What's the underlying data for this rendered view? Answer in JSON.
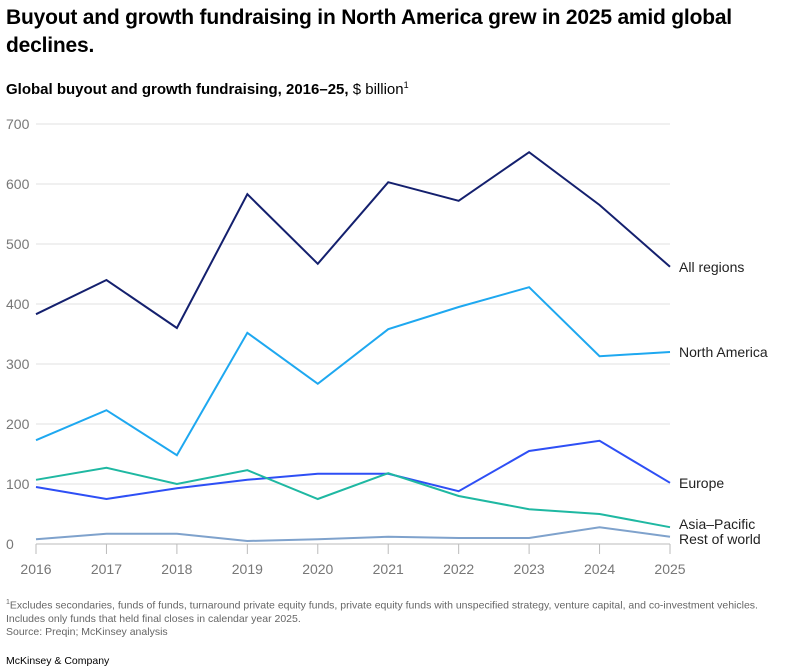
{
  "title": "Buyout and growth fundraising in North America grew in 2025 amid global declines.",
  "subtitle": {
    "bold": "Global buyout and growth fundraising, 2016–25,",
    "unit": " $ billion",
    "sup": "1"
  },
  "footnote": {
    "sup": "1",
    "text": "Excludes secondaries, funds of funds, turnaround private equity funds, private equity funds with unspecified strategy, venture capital, and co-investment vehicles. Includes only funds that held final closes in calendar year 2025."
  },
  "source": "Source: Preqin; McKinsey analysis",
  "brand": "McKinsey & Company",
  "chart_data": {
    "type": "line",
    "x": [
      2016,
      2017,
      2018,
      2019,
      2020,
      2021,
      2022,
      2023,
      2024,
      2025
    ],
    "xtick_labels": [
      "2016",
      "2017",
      "2018",
      "2019",
      "2020",
      "2021",
      "2022",
      "2023",
      "2024",
      "2025"
    ],
    "ylim": [
      0,
      700
    ],
    "yticks": [
      0,
      100,
      200,
      300,
      400,
      500,
      600,
      700
    ],
    "ytick_labels": [
      "0",
      "100",
      "200",
      "300",
      "400",
      "500",
      "600",
      "700"
    ],
    "grid": true,
    "legend": "direct labels at right end of lines",
    "series": [
      {
        "name": "All regions",
        "color": "#14206e",
        "values": [
          383,
          440,
          360,
          583,
          467,
          603,
          572,
          653,
          565,
          462
        ]
      },
      {
        "name": "North America",
        "color": "#1ea8f0",
        "values": [
          173,
          223,
          148,
          352,
          267,
          358,
          395,
          428,
          313,
          320
        ]
      },
      {
        "name": "Europe",
        "color": "#2e4ff5",
        "values": [
          95,
          75,
          93,
          107,
          117,
          117,
          88,
          155,
          172,
          102
        ]
      },
      {
        "name": "Asia–Pacific",
        "color": "#1fb8a2",
        "values": [
          107,
          127,
          100,
          123,
          75,
          118,
          80,
          58,
          50,
          28
        ]
      },
      {
        "name": "Rest of world",
        "color": "#7fa2cc",
        "values": [
          8,
          17,
          17,
          5,
          8,
          12,
          10,
          10,
          28,
          12
        ]
      }
    ]
  }
}
